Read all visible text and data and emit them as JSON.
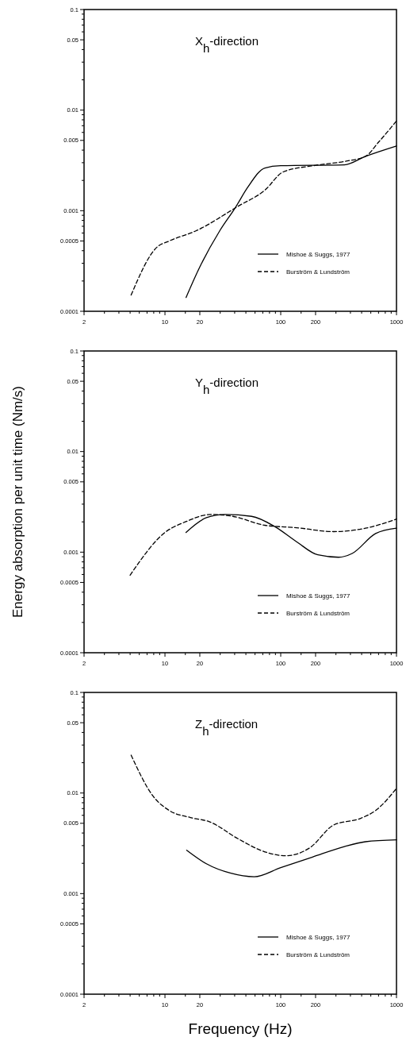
{
  "chart_data": [
    {
      "type": "line",
      "title": "X$_{h}$-direction",
      "log": "xy",
      "legend": "bottom right",
      "tick_labels": "xy",
      "xlim": [
        2,
        1000
      ],
      "xticks": [
        2,
        {
          "value": 3,
          "label": null
        },
        {
          "value": 4,
          "label": null
        },
        {
          "value": 5,
          "label": null
        },
        {
          "value": 6,
          "label": null
        },
        {
          "value": 7,
          "label": null
        },
        {
          "value": 8,
          "label": null
        },
        {
          "value": 9,
          "label": null
        },
        10,
        {
          "value": 15,
          "label": null
        },
        20,
        {
          "value": 30,
          "label": null
        },
        {
          "value": 40,
          "label": null
        },
        {
          "value": 50,
          "label": null
        },
        {
          "value": 60,
          "label": null
        },
        {
          "value": 70,
          "label": null
        },
        {
          "value": 80,
          "label": null
        },
        {
          "value": 90,
          "label": null
        },
        100,
        {
          "value": 150,
          "label": null
        },
        200,
        {
          "value": 300,
          "label": null
        },
        {
          "value": 400,
          "label": null
        },
        {
          "value": 500,
          "label": null
        },
        {
          "value": 600,
          "label": null
        },
        {
          "value": 700,
          "label": null
        },
        {
          "value": 800,
          "label": null
        },
        {
          "value": 900,
          "label": null
        },
        1000
      ],
      "ylim": [
        0.0001,
        0.1
      ],
      "yticks": [
        0.0001,
        {
          "value": 0.0002,
          "label": null
        },
        {
          "value": 0.0003,
          "label": null
        },
        {
          "value": 0.0004,
          "label": null
        },
        0.0005,
        {
          "value": 0.0006,
          "label": null
        },
        {
          "value": 0.0007,
          "label": null
        },
        {
          "value": 0.0008,
          "label": null
        },
        {
          "value": 0.0009,
          "label": null
        },
        0.001,
        {
          "value": 0.002,
          "label": null
        },
        {
          "value": 0.003,
          "label": null
        },
        {
          "value": 0.004,
          "label": null
        },
        0.005,
        {
          "value": 0.006,
          "label": null
        },
        {
          "value": 0.007,
          "label": null
        },
        {
          "value": 0.008,
          "label": null
        },
        {
          "value": 0.009,
          "label": null
        },
        0.01,
        {
          "value": 0.02,
          "label": null
        },
        {
          "value": 0.03,
          "label": null
        },
        {
          "value": 0.04,
          "label": null
        },
        0.05,
        {
          "value": 0.06,
          "label": null
        },
        {
          "value": 0.07,
          "label": null
        },
        {
          "value": 0.08,
          "label": null
        },
        {
          "value": 0.09,
          "label": null
        },
        0.1
      ],
      "series": [
        {
          "name": "Mishoe & Suggs, 1977",
          "color": "#000000",
          "line_style": "solid",
          "x": [
            15.2,
            19.5,
            29.7,
            40.7,
            51.7,
            73,
            100,
            355,
            540,
            1000
          ],
          "values": [
            0.000137,
            0.00026,
            0.00063,
            0.00108,
            0.0017,
            0.00266,
            0.0028,
            0.00286,
            0.00347,
            0.0044
          ]
        },
        {
          "name": "Burström & Lundström",
          "color": "#000000",
          "line_style": "dashed",
          "x": [
            5.1,
            8.4,
            10.9,
            18.5,
            43,
            73,
            105,
            198,
            355,
            540,
            700,
            1000
          ],
          "values": [
            0.000145,
            0.000427,
            0.0005,
            0.00063,
            0.00111,
            0.0016,
            0.00243,
            0.00282,
            0.00309,
            0.00347,
            0.0048,
            0.0078
          ]
        }
      ]
    },
    {
      "type": "line",
      "title": "Y$_{h}$-direction",
      "ylabel": "Energy absorption per unit time (Nm/s)",
      "log": "xy",
      "legend": "bottom right",
      "tick_labels": "xy",
      "xlim": [
        2,
        1000
      ],
      "xticks": [
        2,
        {
          "value": 3,
          "label": null
        },
        {
          "value": 4,
          "label": null
        },
        {
          "value": 5,
          "label": null
        },
        {
          "value": 6,
          "label": null
        },
        {
          "value": 7,
          "label": null
        },
        {
          "value": 8,
          "label": null
        },
        {
          "value": 9,
          "label": null
        },
        10,
        {
          "value": 15,
          "label": null
        },
        20,
        {
          "value": 30,
          "label": null
        },
        {
          "value": 40,
          "label": null
        },
        {
          "value": 50,
          "label": null
        },
        {
          "value": 60,
          "label": null
        },
        {
          "value": 70,
          "label": null
        },
        {
          "value": 80,
          "label": null
        },
        {
          "value": 90,
          "label": null
        },
        100,
        {
          "value": 150,
          "label": null
        },
        200,
        {
          "value": 300,
          "label": null
        },
        {
          "value": 400,
          "label": null
        },
        {
          "value": 500,
          "label": null
        },
        {
          "value": 600,
          "label": null
        },
        {
          "value": 700,
          "label": null
        },
        {
          "value": 800,
          "label": null
        },
        {
          "value": 900,
          "label": null
        },
        1000
      ],
      "ylim": [
        0.0001,
        0.1
      ],
      "yticks": [
        0.0001,
        {
          "value": 0.0002,
          "label": null
        },
        {
          "value": 0.0003,
          "label": null
        },
        {
          "value": 0.0004,
          "label": null
        },
        0.0005,
        {
          "value": 0.0006,
          "label": null
        },
        {
          "value": 0.0007,
          "label": null
        },
        {
          "value": 0.0008,
          "label": null
        },
        {
          "value": 0.0009,
          "label": null
        },
        0.001,
        {
          "value": 0.002,
          "label": null
        },
        {
          "value": 0.003,
          "label": null
        },
        {
          "value": 0.004,
          "label": null
        },
        0.005,
        {
          "value": 0.006,
          "label": null
        },
        {
          "value": 0.007,
          "label": null
        },
        {
          "value": 0.008,
          "label": null
        },
        {
          "value": 0.009,
          "label": null
        },
        0.01,
        {
          "value": 0.02,
          "label": null
        },
        {
          "value": 0.03,
          "label": null
        },
        {
          "value": 0.04,
          "label": null
        },
        0.05,
        {
          "value": 0.06,
          "label": null
        },
        {
          "value": 0.07,
          "label": null
        },
        {
          "value": 0.08,
          "label": null
        },
        {
          "value": 0.09,
          "label": null
        },
        0.1
      ],
      "series": [
        {
          "name": "Mishoe & Suggs, 1977",
          "color": "#000000",
          "line_style": "solid",
          "x": [
            15.2,
            22.8,
            33,
            56,
            90,
            137,
            209,
            316,
            414,
            660,
            1000
          ],
          "values": [
            0.00157,
            0.0022,
            0.00237,
            0.00227,
            0.00178,
            0.00127,
            0.00094,
            0.00089,
            0.00097,
            0.00153,
            0.00173
          ]
        },
        {
          "name": "Burström & Lundström",
          "color": "#000000",
          "line_style": "dashed",
          "x": [
            5,
            10,
            15,
            25,
            38.6,
            73,
            137,
            286,
            540,
            1000
          ],
          "values": [
            0.00059,
            0.00157,
            0.002,
            0.00237,
            0.00227,
            0.00185,
            0.00175,
            0.0016,
            0.00173,
            0.00213
          ]
        }
      ]
    },
    {
      "type": "line",
      "title": "Z$_{h}$-direction",
      "xlabel": "Frequency (Hz)",
      "log": "xy",
      "legend": "bottom right",
      "tick_labels": "xy",
      "xlim": [
        2,
        1000
      ],
      "xticks": [
        2,
        {
          "value": 3,
          "label": null
        },
        {
          "value": 4,
          "label": null
        },
        {
          "value": 5,
          "label": null
        },
        {
          "value": 6,
          "label": null
        },
        {
          "value": 7,
          "label": null
        },
        {
          "value": 8,
          "label": null
        },
        {
          "value": 9,
          "label": null
        },
        10,
        {
          "value": 15,
          "label": null
        },
        20,
        {
          "value": 30,
          "label": null
        },
        {
          "value": 40,
          "label": null
        },
        {
          "value": 50,
          "label": null
        },
        {
          "value": 60,
          "label": null
        },
        {
          "value": 70,
          "label": null
        },
        {
          "value": 80,
          "label": null
        },
        {
          "value": 90,
          "label": null
        },
        100,
        {
          "value": 150,
          "label": null
        },
        200,
        {
          "value": 300,
          "label": null
        },
        {
          "value": 400,
          "label": null
        },
        {
          "value": 500,
          "label": null
        },
        {
          "value": 600,
          "label": null
        },
        {
          "value": 700,
          "label": null
        },
        {
          "value": 800,
          "label": null
        },
        {
          "value": 900,
          "label": null
        },
        1000
      ],
      "ylim": [
        0.0001,
        0.1
      ],
      "yticks": [
        0.0001,
        {
          "value": 0.0002,
          "label": null
        },
        {
          "value": 0.0003,
          "label": null
        },
        {
          "value": 0.0004,
          "label": null
        },
        0.0005,
        {
          "value": 0.0006,
          "label": null
        },
        {
          "value": 0.0007,
          "label": null
        },
        {
          "value": 0.0008,
          "label": null
        },
        {
          "value": 0.0009,
          "label": null
        },
        0.001,
        {
          "value": 0.002,
          "label": null
        },
        {
          "value": 0.003,
          "label": null
        },
        {
          "value": 0.004,
          "label": null
        },
        0.005,
        {
          "value": 0.006,
          "label": null
        },
        {
          "value": 0.007,
          "label": null
        },
        {
          "value": 0.008,
          "label": null
        },
        {
          "value": 0.009,
          "label": null
        },
        0.01,
        {
          "value": 0.02,
          "label": null
        },
        {
          "value": 0.03,
          "label": null
        },
        {
          "value": 0.04,
          "label": null
        },
        0.05,
        {
          "value": 0.06,
          "label": null
        },
        {
          "value": 0.07,
          "label": null
        },
        {
          "value": 0.08,
          "label": null
        },
        {
          "value": 0.09,
          "label": null
        },
        0.1
      ],
      "series": [
        {
          "name": "Mishoe & Suggs, 1977",
          "color": "#000000",
          "line_style": "solid",
          "x": [
            15.4,
            22.8,
            36.6,
            59,
            100,
            188,
            355,
            540,
            1000
          ],
          "values": [
            0.0027,
            0.00198,
            0.0016,
            0.00147,
            0.00181,
            0.00231,
            0.00294,
            0.00328,
            0.00342
          ]
        },
        {
          "name": "Burström & Lundström",
          "color": "#000000",
          "line_style": "dashed",
          "x": [
            5.1,
            7.9,
            10.9,
            16.6,
            24,
            43,
            73,
            111,
            178,
            286,
            490,
            660,
            1000
          ],
          "values": [
            0.0238,
            0.0093,
            0.0067,
            0.0057,
            0.0052,
            0.0035,
            0.0026,
            0.00238,
            0.00285,
            0.0048,
            0.0056,
            0.0067,
            0.0111
          ]
        }
      ]
    }
  ]
}
